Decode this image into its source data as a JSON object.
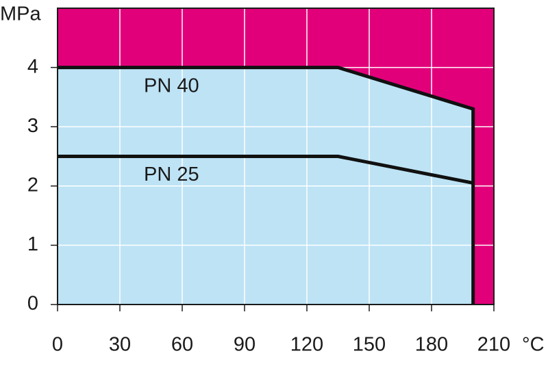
{
  "chart_data": {
    "type": "area",
    "y_label": "MPa",
    "x_label": "°C",
    "background": "#e2007a",
    "grid": true,
    "grid_color": "#ffffff",
    "xlim": [
      0,
      210
    ],
    "xticks": [
      0,
      30,
      60,
      90,
      120,
      150,
      180,
      210
    ],
    "ylim": [
      0,
      5
    ],
    "yticks": [
      0,
      1,
      2,
      3,
      4
    ],
    "series": [
      {
        "name": "PN 40",
        "color": "#111111",
        "fill": "#bde3f5",
        "x": [
          0,
          135,
          200,
          200
        ],
        "values": [
          4,
          4,
          3.3,
          0
        ]
      },
      {
        "name": "PN 25",
        "color": "#111111",
        "x": [
          0,
          135,
          200
        ],
        "values": [
          2.5,
          2.5,
          2.05
        ]
      }
    ]
  }
}
